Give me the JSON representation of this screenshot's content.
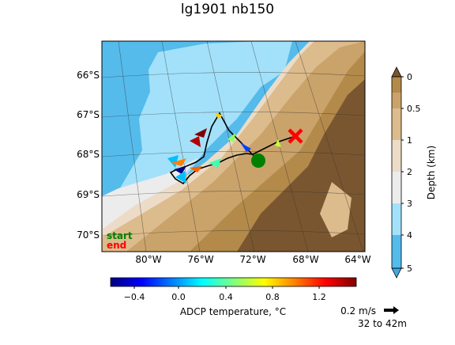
{
  "title": "lg1901 nb150",
  "map": {
    "lat_labels": [
      "66°S",
      "67°S",
      "68°S",
      "69°S",
      "70°S"
    ],
    "lon_labels": [
      "80°W",
      "76°W",
      "72°W",
      "68°W",
      "64°W"
    ],
    "legend_start": "start",
    "legend_end": "end",
    "start_color": "#008000",
    "end_color": "#ff0000"
  },
  "depth_colorbar": {
    "label": "Depth (km)",
    "ticks": [
      "0",
      "0.5",
      "1",
      "2",
      "3",
      "4",
      "5"
    ],
    "colors": [
      "#b38a4a",
      "#caa36a",
      "#dcbb8c",
      "#ecdcc7",
      "#ececec",
      "#a3e1fa",
      "#55bbeb"
    ]
  },
  "temp_colorbar": {
    "label": "ADCP temperature, °C",
    "ticks": [
      "−0.4",
      "0.0",
      "0.4",
      "0.8",
      "1.2"
    ],
    "range": [
      -0.6,
      1.5
    ]
  },
  "scale": {
    "speed_label": "0.2 m/s",
    "depth_range": "32 to 42m"
  }
}
